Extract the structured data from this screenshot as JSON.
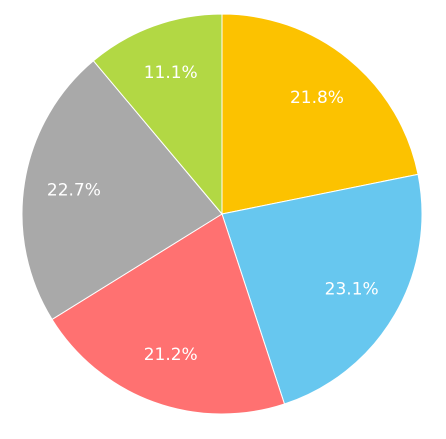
{
  "chart_data": {
    "type": "pie",
    "values": [
      21.8,
      23.1,
      21.2,
      22.7,
      11.1
    ],
    "value_labels": [
      "21.8%",
      "23.1%",
      "21.2%",
      "22.7%",
      "11.1%"
    ],
    "colors": [
      "#fcc200",
      "#67c7ef",
      "#ff7171",
      "#a9a9a9",
      "#b2d844"
    ]
  }
}
